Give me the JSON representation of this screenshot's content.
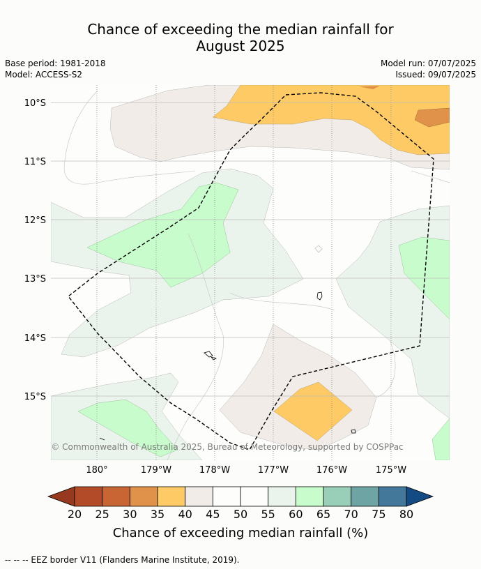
{
  "title_line1": "Chance of exceeding the median rainfall for",
  "title_line2": "August 2025",
  "base_period": "Base period: 1981-2018",
  "model": "Model: ACCESS-S2",
  "model_run": "Model run: 07/07/2025",
  "issued": "Issued: 09/07/2025",
  "copyright": "© Commonwealth of Australia 2025, Bureau of Meteorology, supported by COSPPac",
  "lat_labels": [
    "10°S",
    "11°S",
    "12°S",
    "13°S",
    "14°S",
    "15°S"
  ],
  "lon_labels": [
    "180°",
    "179°W",
    "178°W",
    "177°W",
    "176°W",
    "175°W"
  ],
  "colorbar": {
    "ticks": [
      "20",
      "25",
      "30",
      "35",
      "40",
      "45",
      "50",
      "55",
      "60",
      "65",
      "70",
      "75",
      "80"
    ],
    "colors": [
      "#b34a28",
      "#c96535",
      "#e0924a",
      "#fdca65",
      "#f1ece7",
      "#fdfdfb",
      "#fdfdfb",
      "#ebf4ec",
      "#c8fccc",
      "#99cfb9",
      "#6ea4a4",
      "#43789a"
    ],
    "under_color": "#96391f",
    "over_color": "#134b82",
    "label": "Chance of exceeding median rainfall (%)"
  },
  "legend_text": "-- -- -- EEZ border V11 (Flanders Marine Institute, 2019)."
}
